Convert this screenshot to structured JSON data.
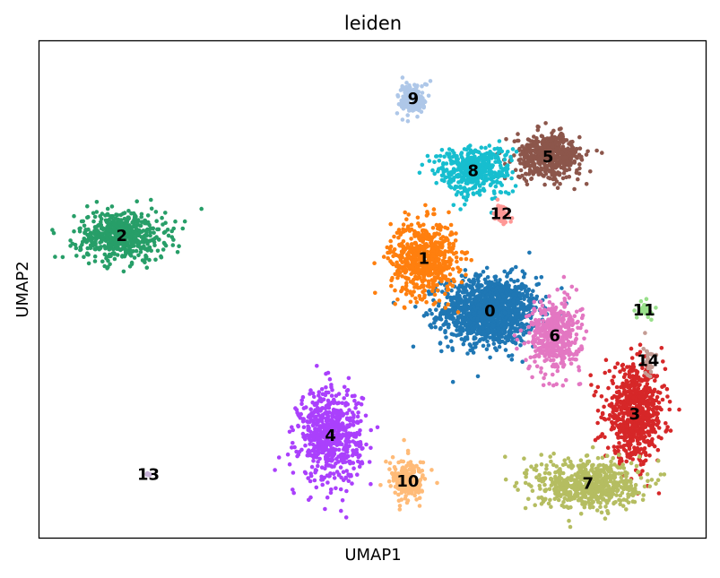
{
  "chart_data": {
    "type": "scatter",
    "title": "leiden",
    "xlabel": "UMAP1",
    "ylabel": "UMAP2",
    "xticks": [],
    "yticks": [],
    "grid": false,
    "legend": "cluster labels placed on data",
    "xlim": [
      0,
      1
    ],
    "ylim": [
      0,
      1
    ],
    "series": [
      {
        "name": "0",
        "color": "#1f77b4",
        "center": [
          0.676,
          0.457
        ],
        "spread": [
          0.065,
          0.062
        ],
        "count": 1300
      },
      {
        "name": "1",
        "color": "#ff7f0e",
        "center": [
          0.577,
          0.562
        ],
        "spread": [
          0.045,
          0.068
        ],
        "count": 620
      },
      {
        "name": "2",
        "color": "#279e68",
        "center": [
          0.124,
          0.608
        ],
        "spread": [
          0.06,
          0.045
        ],
        "count": 560
      },
      {
        "name": "3",
        "color": "#d62728",
        "center": [
          0.893,
          0.25
        ],
        "spread": [
          0.04,
          0.085
        ],
        "count": 720
      },
      {
        "name": "4",
        "color": "#aa40fc",
        "center": [
          0.437,
          0.206
        ],
        "spread": [
          0.042,
          0.085
        ],
        "count": 650
      },
      {
        "name": "5",
        "color": "#8c564b",
        "center": [
          0.763,
          0.767
        ],
        "spread": [
          0.045,
          0.04
        ],
        "count": 500
      },
      {
        "name": "6",
        "color": "#e377c2",
        "center": [
          0.773,
          0.407
        ],
        "spread": [
          0.035,
          0.065
        ],
        "count": 440
      },
      {
        "name": "7",
        "color": "#b5bd61",
        "center": [
          0.823,
          0.11
        ],
        "spread": [
          0.07,
          0.045
        ],
        "count": 620
      },
      {
        "name": "8",
        "color": "#17becf",
        "center": [
          0.651,
          0.739
        ],
        "spread": [
          0.05,
          0.045
        ],
        "count": 460
      },
      {
        "name": "9",
        "color": "#aec7e8",
        "center": [
          0.561,
          0.884
        ],
        "spread": [
          0.02,
          0.03
        ],
        "count": 160
      },
      {
        "name": "10",
        "color": "#ffbb78",
        "center": [
          0.553,
          0.114
        ],
        "spread": [
          0.025,
          0.04
        ],
        "count": 180
      },
      {
        "name": "11",
        "color": "#98df8a",
        "center": [
          0.907,
          0.459
        ],
        "spread": [
          0.01,
          0.015
        ],
        "count": 36
      },
      {
        "name": "12",
        "color": "#ff9896",
        "center": [
          0.693,
          0.652
        ],
        "spread": [
          0.012,
          0.018
        ],
        "count": 50
      },
      {
        "name": "13",
        "color": "#c5b0d5",
        "center": [
          0.164,
          0.128
        ],
        "spread": [
          0.004,
          0.004
        ],
        "count": 8
      },
      {
        "name": "14",
        "color": "#c49c94",
        "center": [
          0.913,
          0.357
        ],
        "spread": [
          0.007,
          0.03
        ],
        "count": 30
      }
    ]
  }
}
